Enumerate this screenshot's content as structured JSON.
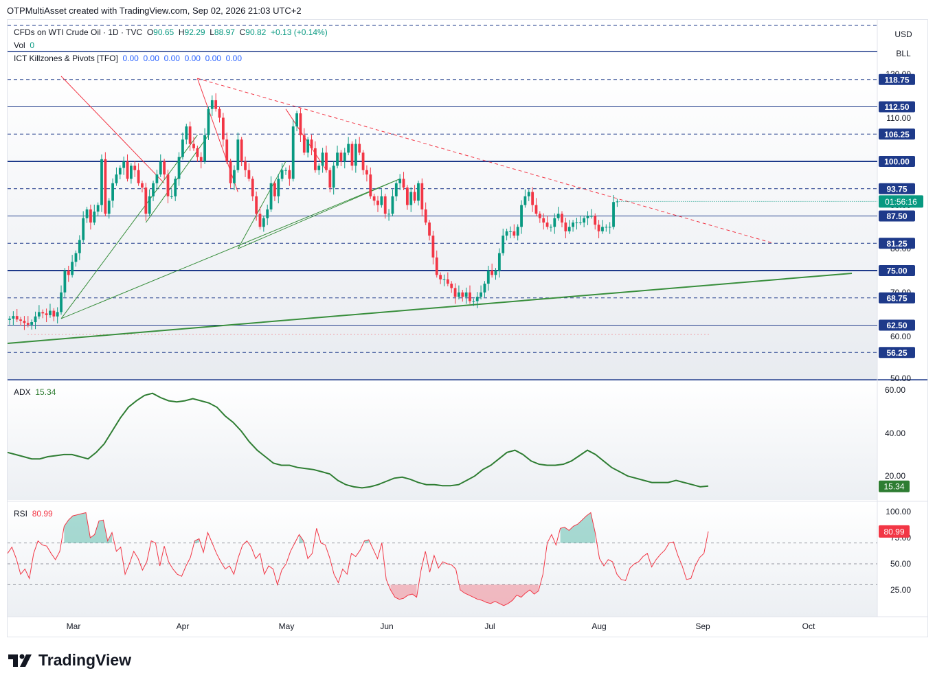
{
  "header": {
    "author_line": "OTPMultiAsset created with TradingView.com, Sep 02, 2026 21:03 UTC+2"
  },
  "legend": {
    "symbol": "CFDs on WTI Crude Oil · 1D · TVC",
    "o_label": "O",
    "o_val": "90.65",
    "h_label": "H",
    "h_val": "92.29",
    "l_label": "L",
    "l_val": "88.97",
    "c_label": "C",
    "c_val": "90.82",
    "change": "+0.13 (+0.14%)",
    "vol_label": "Vol",
    "vol_val": "0",
    "ict_label": "ICT Killzones & Pivots [TFO]",
    "ict_vals": [
      "0.00",
      "0.00",
      "0.00",
      "0.00",
      "0.00",
      "0.00"
    ],
    "adx_label": "ADX",
    "adx_val": "15.34",
    "rsi_label": "RSI",
    "rsi_val": "80.99"
  },
  "axis_units": {
    "currency": "USD",
    "unit": "BLL"
  },
  "footer": {
    "brand": "TradingView"
  },
  "colors": {
    "up": "#089981",
    "down": "#f23645",
    "level": "#1e3a8a",
    "trend_green": "#388e3c",
    "trend_red": "#f23645",
    "adx": "#2e7d32",
    "rsi": "#f23645"
  },
  "chart_data": [
    {
      "type": "candlestick",
      "title": "CFDs on WTI Crude Oil · 1D · TVC",
      "x_ticks": [
        "Mar",
        "Apr",
        "May",
        "Jun",
        "Jul",
        "Aug",
        "Sep",
        "Oct"
      ],
      "y_ticks": [
        "120.00",
        "110.00",
        "100.00",
        "90.00",
        "80.00",
        "70.00",
        "60.00",
        "50.00"
      ],
      "ylim": [
        50,
        120
      ],
      "last_price": "90.82",
      "countdown": "01:56:16",
      "levels": [
        {
          "value": 118.75,
          "label": "118.75",
          "style": "dashed"
        },
        {
          "value": 112.5,
          "label": "112.50",
          "style": "solid"
        },
        {
          "value": 106.25,
          "label": "106.25",
          "style": "dashed"
        },
        {
          "value": 100.0,
          "label": "100.00",
          "style": "solid-bold"
        },
        {
          "value": 93.75,
          "label": "93.75",
          "style": "dashed"
        },
        {
          "value": 87.5,
          "label": "87.50",
          "style": "solid"
        },
        {
          "value": 81.25,
          "label": "81.25",
          "style": "dashed"
        },
        {
          "value": 75.0,
          "label": "75.00",
          "style": "solid-bold"
        },
        {
          "value": 68.75,
          "label": "68.75",
          "style": "dashed"
        },
        {
          "value": 62.5,
          "label": "62.50",
          "style": "solid"
        },
        {
          "value": 56.25,
          "label": "56.25",
          "style": "dashed"
        }
      ],
      "closes": [
        64,
        64.6,
        63.8,
        63.5,
        63,
        62.6,
        63.2,
        64.5,
        65.5,
        65.2,
        64.8,
        65.8,
        64.5,
        65.5,
        70,
        75,
        74,
        77,
        79,
        82,
        87,
        89,
        86,
        88.5,
        90,
        100.5,
        88,
        91,
        95,
        97,
        98.5,
        100,
        96,
        99,
        98,
        95,
        94,
        88,
        92,
        95,
        97,
        100,
        97,
        92,
        92,
        96,
        101,
        105,
        108,
        104,
        103,
        101,
        100,
        106,
        112,
        114,
        112,
        110,
        105,
        100,
        95,
        98,
        105,
        100,
        98,
        96,
        92,
        88,
        85,
        87,
        89,
        95,
        92,
        96,
        98,
        98,
        96,
        108,
        111,
        106,
        102,
        105,
        103,
        98,
        99,
        102,
        98,
        94,
        99,
        102,
        100,
        102,
        104,
        99,
        104,
        102,
        98,
        97,
        92,
        91,
        90,
        92,
        88,
        88,
        92,
        95,
        96,
        94,
        90,
        93,
        91,
        95,
        89,
        86,
        83,
        78,
        74,
        73,
        73,
        72,
        71,
        69,
        70,
        69,
        70,
        68,
        68,
        69,
        70,
        72,
        75,
        74,
        75,
        79,
        83,
        84,
        84,
        83,
        85,
        90,
        92,
        93,
        90,
        88,
        87,
        86,
        85,
        85,
        87,
        88,
        86,
        84,
        85,
        86,
        86,
        86,
        87,
        87.5,
        87.5,
        85.5,
        84,
        85,
        85,
        85,
        90.69,
        90.82
      ],
      "overlays": [
        {
          "type": "resistance-dashed",
          "from_index": 94,
          "to_index": 180
        },
        {
          "type": "support-line",
          "from_index": 0,
          "to_index": 189
        }
      ]
    },
    {
      "type": "line",
      "title": "ADX",
      "y_ticks": [
        "60.00",
        "40.00",
        "20.00"
      ],
      "ylim": [
        10,
        65
      ],
      "last_value": "15.34",
      "values": [
        31,
        30,
        29,
        28,
        28,
        29,
        29.5,
        30,
        30,
        29,
        28,
        31,
        35,
        41,
        47,
        52,
        55,
        57.5,
        58.5,
        56.5,
        55,
        54.5,
        55,
        56,
        55,
        54,
        52,
        48,
        45,
        41,
        36,
        32,
        29,
        26,
        25,
        25,
        24,
        23.5,
        23,
        22,
        21,
        18,
        16,
        15,
        14.5,
        15,
        16,
        17.5,
        19,
        19.5,
        18.5,
        17,
        16,
        16,
        15.5,
        15.5,
        16,
        18,
        20,
        23,
        25,
        28,
        31,
        32,
        30,
        27,
        25.5,
        25,
        25,
        25.5,
        27,
        29.5,
        32,
        30,
        27,
        24,
        22,
        20,
        19,
        18,
        17,
        17,
        17,
        18,
        17,
        16,
        15,
        15.34
      ]
    },
    {
      "type": "line",
      "title": "RSI",
      "y_ticks": [
        "100.00",
        "75.00",
        "50.00",
        "25.00"
      ],
      "ylim": [
        0,
        100
      ],
      "overbought": 70,
      "oversold": 30,
      "last_value": "80.99",
      "values": [
        60,
        66,
        55,
        40,
        45,
        36,
        60,
        72,
        68,
        67,
        60,
        54,
        62,
        86,
        92,
        96,
        97,
        98,
        99,
        75,
        78,
        91,
        92,
        72,
        80,
        62,
        66,
        40,
        50,
        62,
        55,
        44,
        52,
        72,
        70,
        48,
        67,
        52,
        45,
        40,
        38,
        48,
        56,
        72,
        74,
        61,
        80,
        70,
        60,
        52,
        45,
        48,
        40,
        56,
        68,
        72,
        66,
        55,
        60,
        40,
        48,
        45,
        30,
        44,
        50,
        62,
        70,
        78,
        72,
        55,
        60,
        84,
        70,
        68,
        56,
        40,
        32,
        45,
        40,
        60,
        57,
        63,
        72,
        73,
        64,
        55,
        70,
        35,
        25,
        18,
        16,
        17,
        20,
        21,
        18,
        44,
        62,
        42,
        58,
        46,
        52,
        50,
        49,
        45,
        25,
        22,
        20,
        18,
        16,
        15,
        13,
        12,
        14,
        12,
        10,
        12,
        15,
        20,
        18,
        22,
        25,
        21,
        24,
        40,
        70,
        78,
        68,
        84,
        85,
        82,
        86,
        88,
        92,
        96,
        99,
        80,
        55,
        48,
        54,
        52,
        40,
        35,
        34,
        46,
        50,
        52,
        57,
        60,
        47,
        54,
        59,
        63,
        70,
        71,
        58,
        48,
        35,
        36,
        48,
        56,
        60,
        80.99
      ]
    }
  ]
}
